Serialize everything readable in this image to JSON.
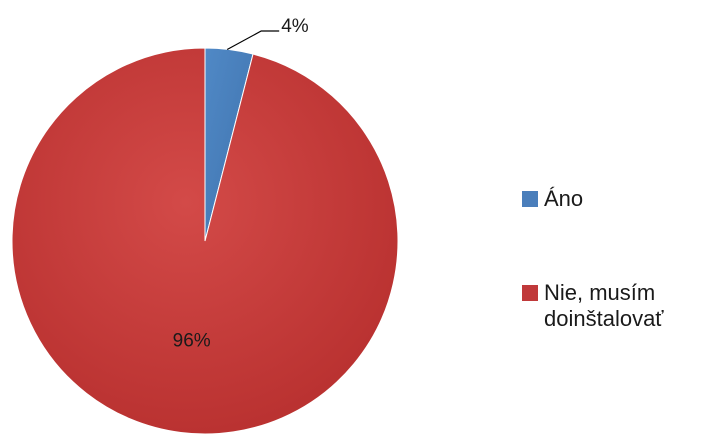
{
  "chart_data": {
    "type": "pie",
    "slices": [
      {
        "label": "Áno",
        "value": 4,
        "data_label": "4%",
        "color": "#4a7ebb"
      },
      {
        "label": "Nie, musím doinštalovať",
        "value": 96,
        "data_label": "96%",
        "color": "#c0393a"
      }
    ],
    "legend_position": "right"
  }
}
